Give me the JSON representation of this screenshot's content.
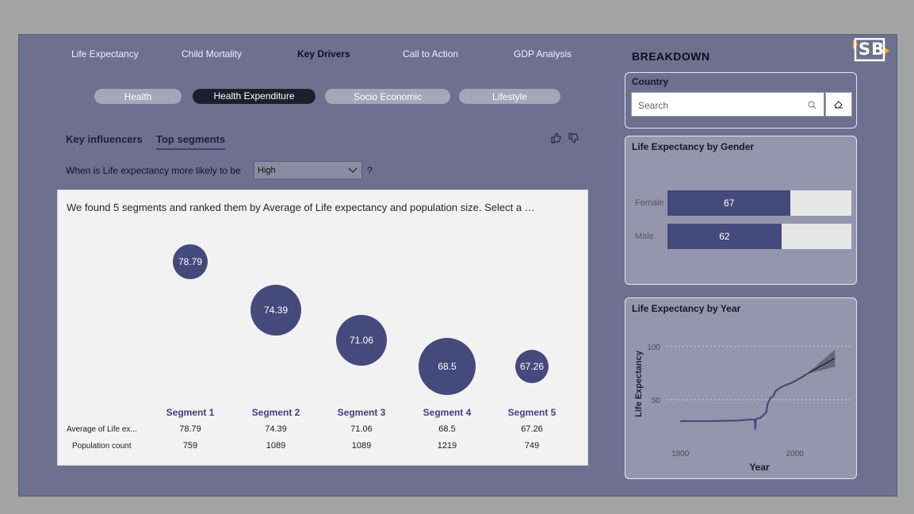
{
  "nav": {
    "items": [
      {
        "label": "Life Expectancy",
        "left": 90
      },
      {
        "label": "Child Mortality",
        "left": 229
      },
      {
        "label": "Key Drivers",
        "left": 375
      },
      {
        "label": "Call to Action",
        "left": 508
      },
      {
        "label": "GDP Analysis",
        "left": 648
      }
    ],
    "active": "Key Drivers"
  },
  "pills": {
    "items": [
      "Health",
      "Health Expenditure",
      "Socio Economic",
      "Lifestyle"
    ],
    "active": "Health Expenditure"
  },
  "influencers": {
    "tabs": [
      "Key influencers",
      "Top segments"
    ],
    "selected": "Top segments",
    "question": "When is Life expectancy more likely to be",
    "target_value": "High",
    "question_mark": "?",
    "description": "We found 5 segments and ranked them by Average of Life expectancy and population size. Select a …",
    "row_labels": [
      "Average of Life ex...",
      "Population count"
    ],
    "segments": [
      {
        "name": "Segment 1",
        "avg": "78.79",
        "population": "759"
      },
      {
        "name": "Segment 2",
        "avg": "74.39",
        "population": "1089"
      },
      {
        "name": "Segment 3",
        "avg": "71.06",
        "population": "1089"
      },
      {
        "name": "Segment 4",
        "avg": "68.5",
        "population": "1219"
      },
      {
        "name": "Segment 5",
        "avg": "67.26",
        "population": "749"
      }
    ]
  },
  "breakdown": {
    "title": "BREAKDOWN",
    "country_card": {
      "title": "Country",
      "placeholder": "Search"
    },
    "gender_card": {
      "title": "Life Expectancy by Gender",
      "bars": [
        {
          "label": "Female",
          "value": 67
        },
        {
          "label": "Male",
          "value": 62
        }
      ],
      "max": 100
    },
    "year_card": {
      "title": "Life Expectancy by Year"
    }
  },
  "logo": {
    "text": "SB"
  },
  "colors": {
    "accent": "#454a7c",
    "frame": "#6e7090",
    "logo_yellow": "#f2b705"
  },
  "chart_data": {
    "type": "line",
    "title": "Life Expectancy by Year",
    "xlabel": "Year",
    "ylabel": "Life Expectancy",
    "x_ticks": [
      "1800",
      "2000"
    ],
    "y_ticks": [
      "50",
      "100"
    ],
    "xlim": [
      1750,
      2100
    ],
    "ylim": [
      15,
      108
    ],
    "grid": "horizontal dotted",
    "series": [
      {
        "values": [
          [
            1800,
            30
          ],
          [
            1850,
            30
          ],
          [
            1900,
            30.5
          ],
          [
            1925,
            31.5
          ],
          [
            1930,
            31
          ],
          [
            1931,
            22
          ],
          [
            1932,
            32
          ],
          [
            1940,
            33
          ],
          [
            1950,
            38
          ],
          [
            1953,
            47
          ],
          [
            1958,
            52
          ],
          [
            1962,
            53
          ],
          [
            1966,
            58
          ],
          [
            1975,
            61.5
          ],
          [
            1985,
            64
          ],
          [
            1995,
            66
          ],
          [
            2005,
            69
          ],
          [
            2015,
            72
          ],
          [
            2020,
            74
          ]
        ]
      }
    ],
    "forecast": {
      "values": [
        [
          2020,
          74
        ],
        [
          2070,
          89
        ]
      ],
      "upper": [
        [
          2020,
          74
        ],
        [
          2070,
          97
        ]
      ],
      "lower": [
        [
          2020,
          74
        ],
        [
          2070,
          81
        ]
      ]
    }
  }
}
